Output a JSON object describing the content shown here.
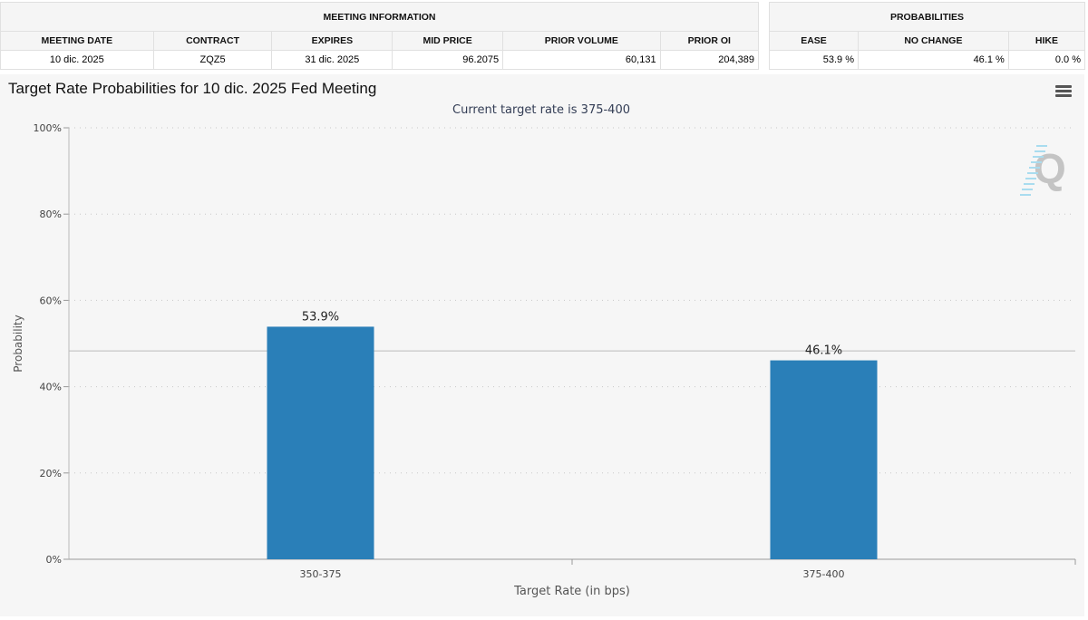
{
  "meeting_info": {
    "heading": "MEETING INFORMATION",
    "columns": [
      "MEETING DATE",
      "CONTRACT",
      "EXPIRES",
      "MID PRICE",
      "PRIOR VOLUME",
      "PRIOR OI"
    ],
    "row": [
      "10 dic. 2025",
      "ZQZ5",
      "31 dic. 2025",
      "96.2075",
      "60,131",
      "204,389"
    ]
  },
  "probabilities": {
    "heading": "PROBABILITIES",
    "columns": [
      "EASE",
      "NO CHANGE",
      "HIKE"
    ],
    "row": [
      "53.9 %",
      "46.1 %",
      "0.0 %"
    ]
  },
  "chart_data": {
    "type": "bar",
    "title": "Target Rate Probabilities for 10 dic. 2025 Fed Meeting",
    "subtitle": "Current target rate is 375-400",
    "xlabel": "Target Rate (in bps)",
    "ylabel": "Probability",
    "categories": [
      "350-375",
      "375-400"
    ],
    "values": [
      53.9,
      46.1
    ],
    "data_labels": [
      "53.9%",
      "46.1%"
    ],
    "ylim": [
      0,
      100
    ],
    "yticks": [
      "0%",
      "20%",
      "40%",
      "60%",
      "80%",
      "100%"
    ],
    "reference_line": 48.3,
    "grid": true,
    "color": "#2a7fb8"
  }
}
